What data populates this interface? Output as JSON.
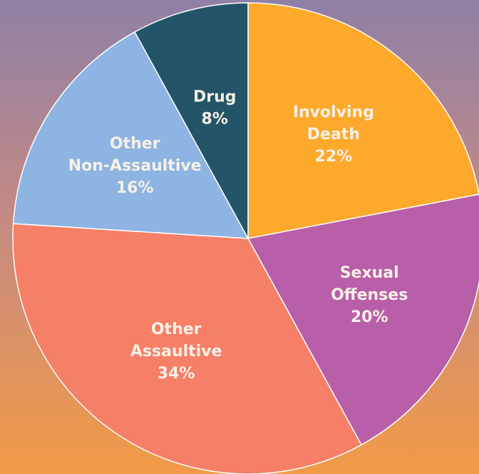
{
  "chart_data": {
    "type": "pie",
    "categories": [
      "Involving Death",
      "Sexual Offenses",
      "Other Assaultive",
      "Other Non-Assaultive",
      "Drug"
    ],
    "values": [
      22,
      20,
      34,
      16,
      8
    ],
    "value_labels": [
      "22%",
      "20%",
      "34%",
      "16%",
      "8%"
    ],
    "colors": [
      "#fda92c",
      "#b95ea8",
      "#f67f67",
      "#8db4e2",
      "#235468"
    ]
  }
}
